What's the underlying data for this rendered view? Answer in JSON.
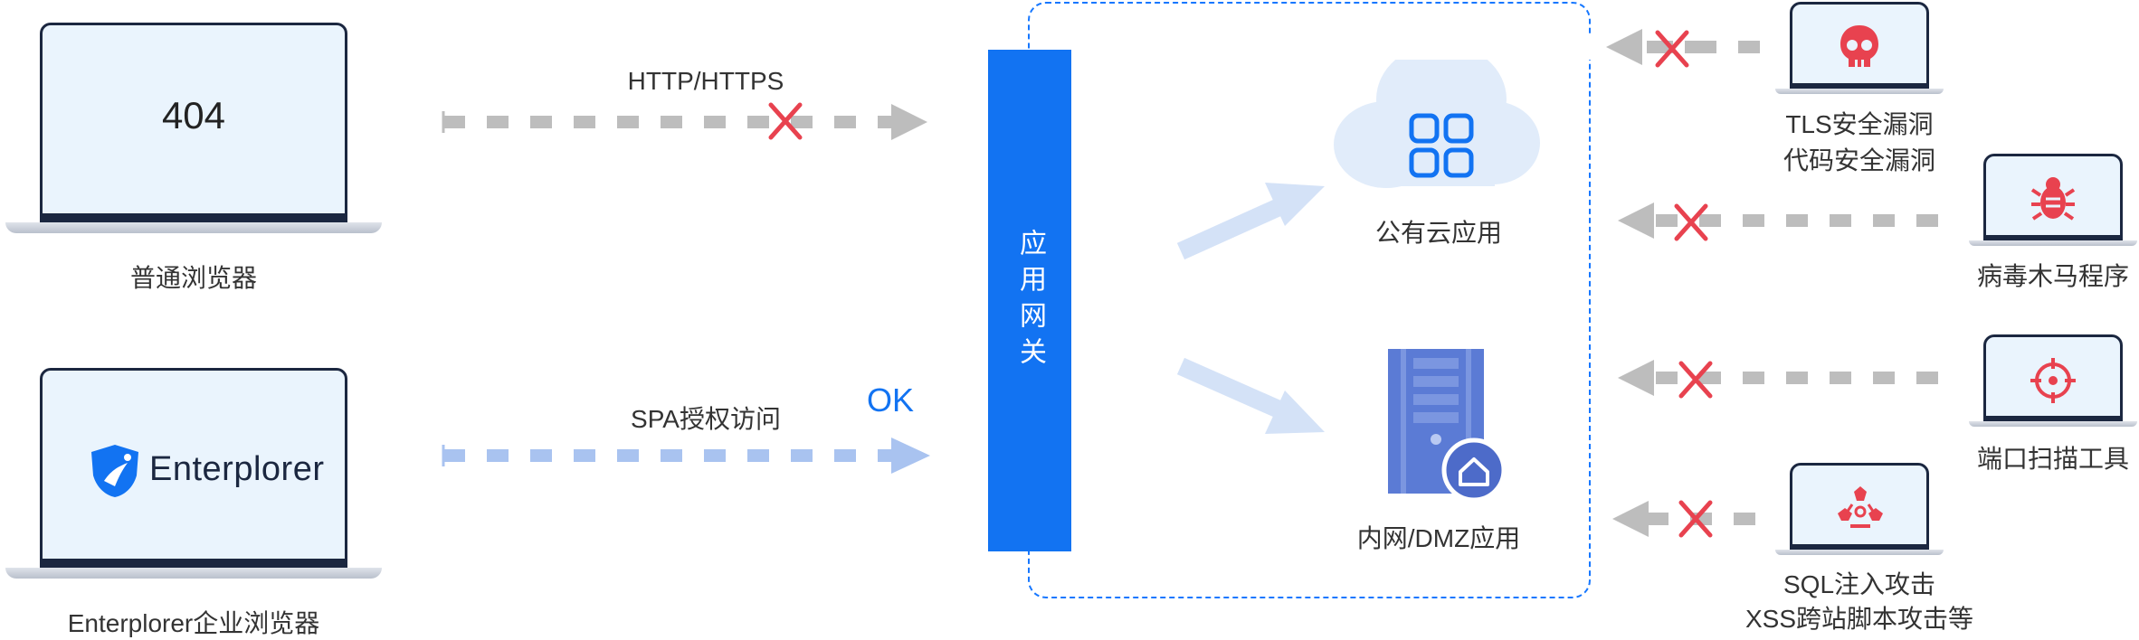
{
  "left_clients": {
    "normal_browser": {
      "screen_text": "404",
      "label": "普通浏览器"
    },
    "enterplorer_browser": {
      "logo_text": "Enterplorer",
      "label": "Enterplorer企业浏览器"
    }
  },
  "flows": {
    "http": {
      "label": "HTTP/HTTPS"
    },
    "spa": {
      "label": "SPA授权访问",
      "status": "OK"
    }
  },
  "gateway": {
    "label": "应用网关"
  },
  "targets": {
    "public_cloud": {
      "label": "公有云应用"
    },
    "intranet": {
      "label": "内网/DMZ应用"
    }
  },
  "threats": [
    {
      "line1": "TLS安全漏洞",
      "line2": "代码安全漏洞",
      "icon": "skull-icon"
    },
    {
      "line1": "病毒木马程序",
      "icon": "bug-icon"
    },
    {
      "line1": "端口扫描工具",
      "icon": "crosshair-icon"
    },
    {
      "line1": "SQL注入攻击",
      "line2": "XSS跨站脚本攻击等",
      "icon": "biohazard-icon"
    }
  ],
  "colors": {
    "accent": "#1273f2",
    "blocked_x": "#e8424f",
    "gray_arrow": "#bdbdbd",
    "allowed_arrow": "#a9c3f0"
  }
}
